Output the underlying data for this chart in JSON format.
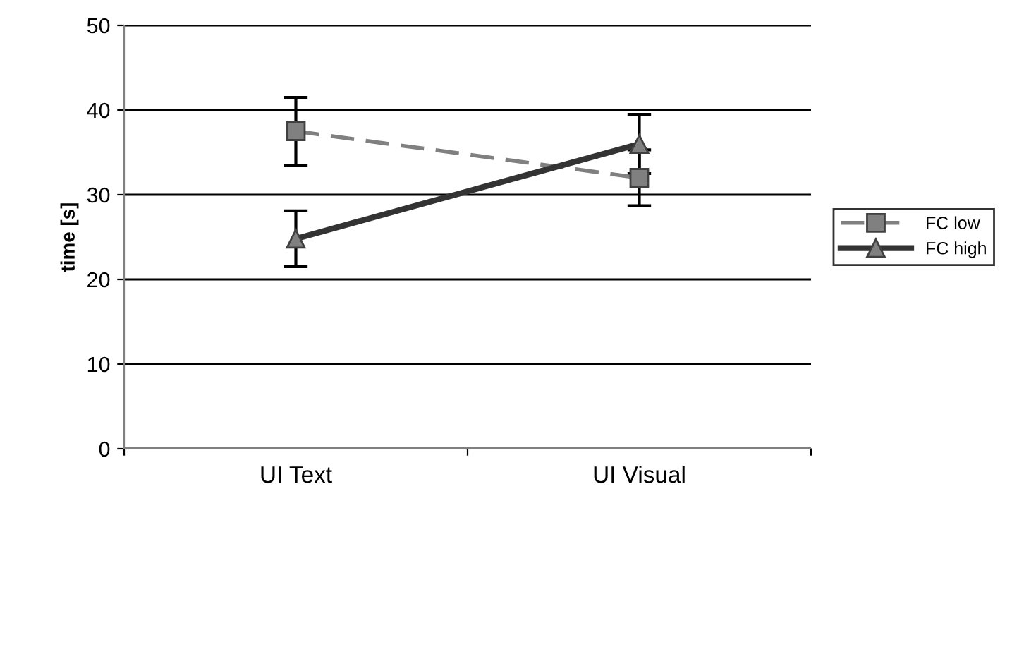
{
  "chart_data": {
    "type": "line",
    "ylabel": "time [s]",
    "categories": [
      "UI Text",
      "UI Visual"
    ],
    "series": [
      {
        "name": "FC low",
        "color": "#808080",
        "values": [
          37.5,
          32
        ],
        "errors": [
          4,
          3.3
        ],
        "marker": "square",
        "line_style": "dashed"
      },
      {
        "name": "FC high",
        "color": "#333333",
        "values": [
          24.8,
          36
        ],
        "errors": [
          3.3,
          3.5
        ],
        "marker": "triangle",
        "line_style": "solid"
      }
    ],
    "ylim": [
      0,
      50
    ],
    "yticks": [
      0,
      10,
      20,
      30,
      40,
      50
    ],
    "grid": "y",
    "legend": "right"
  }
}
